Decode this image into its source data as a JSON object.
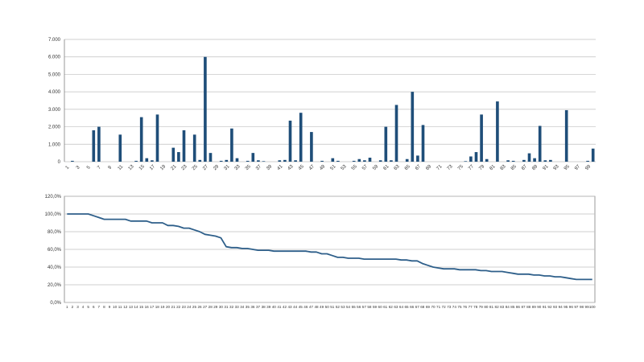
{
  "chart_data": [
    {
      "type": "bar",
      "title": "",
      "xlabel": "",
      "ylabel": "",
      "ylim": [
        0,
        7000
      ],
      "y_ticks": [
        "0",
        "1.000",
        "2.000",
        "3.000",
        "4.000",
        "5.000",
        "6.000",
        "7.000"
      ],
      "grid": true,
      "legend": "none",
      "color": "#1f4e79",
      "x_tick_labels": [
        "1",
        "3",
        "5",
        "7",
        "9",
        "11",
        "13",
        "15",
        "17",
        "19",
        "21",
        "23",
        "25",
        "27",
        "29",
        "31",
        "33",
        "35",
        "37",
        "39",
        "41",
        "43",
        "45",
        "47",
        "49",
        "51",
        "53",
        "55",
        "57",
        "59",
        "61",
        "63",
        "65",
        "67",
        "69",
        "71",
        "73",
        "75",
        "77",
        "79",
        "81",
        "83",
        "85",
        "87",
        "89",
        "91",
        "93",
        "95",
        "97",
        "99"
      ],
      "categories": [
        1,
        2,
        3,
        4,
        5,
        6,
        7,
        8,
        9,
        10,
        11,
        12,
        13,
        14,
        15,
        16,
        17,
        18,
        19,
        20,
        21,
        22,
        23,
        24,
        25,
        26,
        27,
        28,
        29,
        30,
        31,
        32,
        33,
        34,
        35,
        36,
        37,
        38,
        39,
        40,
        41,
        42,
        43,
        44,
        45,
        46,
        47,
        48,
        49,
        50,
        51,
        52,
        53,
        54,
        55,
        56,
        57,
        58,
        59,
        60,
        61,
        62,
        63,
        64,
        65,
        66,
        67,
        68,
        69,
        70,
        71,
        72,
        73,
        74,
        75,
        76,
        77,
        78,
        79,
        80,
        81,
        82,
        83,
        84,
        85,
        86,
        87,
        88,
        89,
        90,
        91,
        92,
        93,
        94,
        95,
        96,
        97,
        98,
        99,
        100
      ],
      "values": [
        0,
        50,
        0,
        0,
        0,
        1800,
        2000,
        0,
        0,
        0,
        1550,
        0,
        0,
        50,
        2550,
        200,
        80,
        2700,
        0,
        0,
        800,
        550,
        1800,
        0,
        1550,
        100,
        6000,
        500,
        0,
        50,
        100,
        1900,
        200,
        0,
        50,
        500,
        80,
        30,
        0,
        0,
        80,
        100,
        2350,
        80,
        2800,
        0,
        1700,
        0,
        50,
        0,
        200,
        50,
        0,
        0,
        50,
        150,
        80,
        230,
        0,
        80,
        2000,
        80,
        3250,
        0,
        150,
        4000,
        350,
        2100,
        0,
        0,
        0,
        0,
        0,
        0,
        0,
        30,
        300,
        550,
        2700,
        150,
        0,
        3450,
        0,
        80,
        50,
        0,
        100,
        480,
        200,
        2050,
        80,
        100,
        0,
        0,
        2950,
        0,
        0,
        0,
        50,
        750
      ]
    },
    {
      "type": "line",
      "title": "",
      "xlabel": "",
      "ylabel": "",
      "ylim": [
        0,
        120
      ],
      "y_ticks": [
        "0,0%",
        "20,0%",
        "40,0%",
        "60,0%",
        "80,0%",
        "100,0%",
        "120,0%"
      ],
      "grid": true,
      "legend": "none",
      "color": "#2e5f8a",
      "x": [
        1,
        2,
        3,
        4,
        5,
        6,
        7,
        8,
        9,
        10,
        11,
        12,
        13,
        14,
        15,
        16,
        17,
        18,
        19,
        20,
        21,
        22,
        23,
        24,
        25,
        26,
        27,
        28,
        29,
        30,
        31,
        32,
        33,
        34,
        35,
        36,
        37,
        38,
        39,
        40,
        41,
        42,
        43,
        44,
        45,
        46,
        47,
        48,
        49,
        50,
        51,
        52,
        53,
        54,
        55,
        56,
        57,
        58,
        59,
        60,
        61,
        62,
        63,
        64,
        65,
        66,
        67,
        68,
        69,
        70,
        71,
        72,
        73,
        74,
        75,
        76,
        77,
        78,
        79,
        80,
        81,
        82,
        83,
        84,
        85,
        86,
        87,
        88,
        89,
        90,
        91,
        92,
        93,
        94,
        95,
        96,
        97,
        98,
        99,
        100
      ],
      "values": [
        100,
        100,
        100,
        100,
        100,
        98,
        96,
        94,
        94,
        94,
        94,
        94,
        92,
        92,
        92,
        92,
        90,
        90,
        90,
        87,
        87,
        86,
        84,
        84,
        82,
        80,
        77,
        76,
        75,
        73,
        63,
        62,
        62,
        61,
        61,
        60,
        59,
        59,
        59,
        58,
        58,
        58,
        58,
        58,
        58,
        58,
        57,
        57,
        55,
        55,
        53,
        51,
        51,
        50,
        50,
        50,
        49,
        49,
        49,
        49,
        49,
        49,
        49,
        48,
        48,
        47,
        47,
        44,
        42,
        40,
        39,
        38,
        38,
        38,
        37,
        37,
        37,
        37,
        36,
        36,
        35,
        35,
        35,
        34,
        33,
        32,
        32,
        32,
        31,
        31,
        30,
        30,
        29,
        29,
        28,
        27,
        26,
        26,
        26,
        26
      ]
    }
  ]
}
